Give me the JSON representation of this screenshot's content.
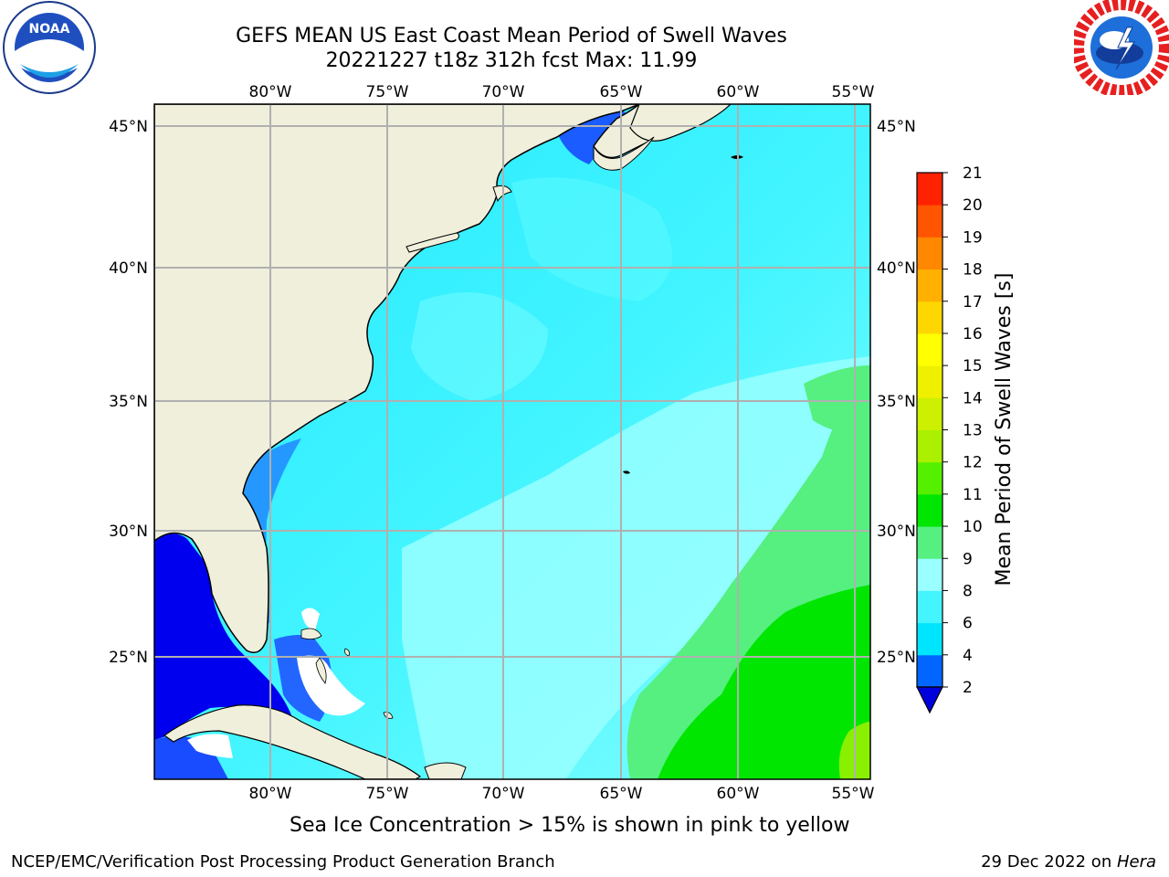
{
  "header": {
    "title_line1": "GEFS MEAN US East Coast Mean Period of Swell Waves",
    "title_line2": "20221227 t18z 312h fcst   Max: 11.99"
  },
  "logos": {
    "left": {
      "icon": "noaa-logo",
      "text": "NOAA"
    },
    "right": {
      "icon": "national-weather-service-logo"
    }
  },
  "map": {
    "longitude_labels": [
      "80°W",
      "75°W",
      "70°W",
      "65°W",
      "60°W",
      "55°W"
    ],
    "latitude_labels": [
      "45°N",
      "40°N",
      "35°N",
      "30°N",
      "25°N"
    ],
    "land_color": "#EFEFDC",
    "grid_color": "#B0B0B0"
  },
  "colorbar": {
    "label": "Mean Period of Swell Waves [s]",
    "ticks": [
      "2",
      "4",
      "6",
      "8",
      "9",
      "10",
      "11",
      "12",
      "13",
      "14",
      "15",
      "16",
      "17",
      "18",
      "19",
      "20",
      "21"
    ],
    "colors": [
      "#0066FF",
      "#00E5FF",
      "#44F5FF",
      "#99FFFF",
      "#55F080",
      "#00E600",
      "#55F000",
      "#AAF000",
      "#CCF000",
      "#EEF000",
      "#FFFF00",
      "#FFD700",
      "#FFB000",
      "#FF8800",
      "#FF5500",
      "#FF2200"
    ],
    "under_color": "#0000DD"
  },
  "notes": {
    "ice": "Sea Ice Concentration > 15% is shown in pink to yellow"
  },
  "footer": {
    "left": "NCEP/EMC/Verification Post Processing Product Generation Branch",
    "right_date": "29 Dec 2022 on ",
    "right_host": "Hera"
  }
}
